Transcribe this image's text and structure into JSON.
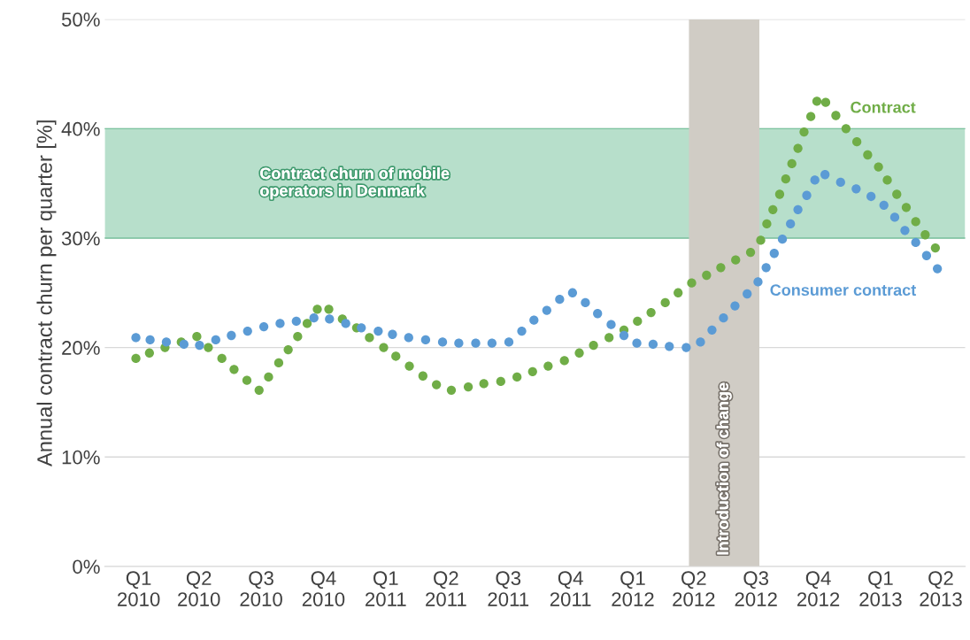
{
  "chart_data": {
    "type": "scatter",
    "ylabel": "Annual contract churn per quarter [%]",
    "xlim": [
      "2009-12-28",
      "2013-06-21"
    ],
    "xticks": [
      {
        "value": "2010-02-16",
        "label": "Q1\n2010"
      },
      {
        "value": "2010-05-16",
        "label": "Q2\n2010"
      },
      {
        "value": "2010-08-16",
        "label": "Q3\n2010"
      },
      {
        "value": "2010-11-16",
        "label": "Q4\n2010"
      },
      {
        "value": "2011-02-16",
        "label": "Q1\n2011"
      },
      {
        "value": "2011-05-16",
        "label": "Q2\n2011"
      },
      {
        "value": "2011-08-16",
        "label": "Q3\n2011"
      },
      {
        "value": "2011-11-16",
        "label": "Q4\n2011"
      },
      {
        "value": "2012-02-16",
        "label": "Q1\n2012"
      },
      {
        "value": "2012-05-16",
        "label": "Q2\n2012"
      },
      {
        "value": "2012-08-16",
        "label": "Q3\n2012"
      },
      {
        "value": "2012-11-16",
        "label": "Q4\n2012"
      },
      {
        "value": "2013-02-16",
        "label": "Q1\n2013"
      },
      {
        "value": "2013-05-16",
        "label": "Q2\n2013"
      }
    ],
    "ylim": [
      0,
      50
    ],
    "yticks": [
      {
        "value": 0,
        "label": "0%"
      },
      {
        "value": 10,
        "label": "10%"
      },
      {
        "value": 20,
        "label": "20%"
      },
      {
        "value": 30,
        "label": "30%"
      },
      {
        "value": 40,
        "label": "40%"
      },
      {
        "value": 50,
        "label": "50%"
      }
    ],
    "grid": "y",
    "legend": false,
    "marker": "circle",
    "bands": [
      {
        "axis": "y",
        "from": 30,
        "to": 40,
        "label": "Contract churn of mobile\noperators in Denmark",
        "color": "#7cc4a0"
      },
      {
        "axis": "x",
        "from": "2012-05-09",
        "to": "2012-08-21",
        "label": "Introduction of change",
        "color": "#d0ccc5"
      }
    ],
    "series": [
      {
        "name": "Contract",
        "color": "#70ad47",
        "x": [
          "2010-02-12",
          "2010-03-04",
          "2010-03-27",
          "2010-04-20",
          "2010-05-13",
          "2010-05-30",
          "2010-06-19",
          "2010-07-07",
          "2010-07-26",
          "2010-08-13",
          "2010-08-27",
          "2010-09-11",
          "2010-09-25",
          "2010-10-09",
          "2010-10-23",
          "2010-11-07",
          "2010-11-24",
          "2010-12-14",
          "2011-01-04",
          "2011-01-23",
          "2011-02-13",
          "2011-03-03",
          "2011-03-23",
          "2011-04-12",
          "2011-05-02",
          "2011-05-24",
          "2011-06-18",
          "2011-07-11",
          "2011-08-05",
          "2011-08-29",
          "2011-09-21",
          "2011-10-14",
          "2011-11-07",
          "2011-11-29",
          "2011-12-20",
          "2012-01-12",
          "2012-02-03",
          "2012-02-23",
          "2012-03-14",
          "2012-04-04",
          "2012-04-23",
          "2012-05-13",
          "2012-06-04",
          "2012-06-25",
          "2012-07-17",
          "2012-08-08",
          "2012-08-23",
          "2012-09-01",
          "2012-09-10",
          "2012-09-20",
          "2012-09-29",
          "2012-10-08",
          "2012-10-17",
          "2012-10-26",
          "2012-11-05",
          "2012-11-14",
          "2012-11-27",
          "2012-12-12",
          "2012-12-27",
          "2013-01-12",
          "2013-01-28",
          "2013-02-13",
          "2013-02-26",
          "2013-03-12",
          "2013-03-26",
          "2013-04-09",
          "2013-04-23",
          "2013-05-08"
        ],
        "values": [
          19.0,
          19.5,
          20.0,
          20.5,
          21.0,
          20.0,
          19.0,
          18.0,
          17.0,
          16.1,
          17.3,
          18.6,
          19.8,
          21.0,
          22.2,
          23.5,
          23.5,
          22.6,
          21.8,
          20.9,
          20.0,
          19.2,
          18.3,
          17.4,
          16.6,
          16.1,
          16.4,
          16.7,
          16.9,
          17.3,
          17.8,
          18.3,
          18.8,
          19.5,
          20.2,
          20.9,
          21.6,
          22.4,
          23.2,
          24.1,
          25.0,
          25.9,
          26.6,
          27.3,
          28.0,
          28.7,
          29.8,
          31.3,
          32.6,
          34.0,
          35.4,
          36.8,
          38.2,
          39.7,
          41.1,
          42.5,
          42.4,
          41.2,
          40.0,
          38.8,
          37.6,
          36.5,
          35.3,
          34.0,
          32.8,
          31.5,
          30.3,
          29.1
        ]
      },
      {
        "name": "Consumer contract",
        "color": "#5b9bd5",
        "x": [
          "2010-02-12",
          "2010-03-05",
          "2010-03-29",
          "2010-04-24",
          "2010-05-17",
          "2010-06-10",
          "2010-07-03",
          "2010-07-27",
          "2010-08-20",
          "2010-09-13",
          "2010-10-07",
          "2010-11-02",
          "2010-11-25",
          "2010-12-19",
          "2011-01-11",
          "2011-02-05",
          "2011-02-26",
          "2011-03-22",
          "2011-04-16",
          "2011-05-11",
          "2011-06-04",
          "2011-06-29",
          "2011-07-23",
          "2011-08-17",
          "2011-09-05",
          "2011-09-23",
          "2011-10-12",
          "2011-10-31",
          "2011-11-19",
          "2011-12-08",
          "2011-12-26",
          "2012-01-15",
          "2012-02-03",
          "2012-02-22",
          "2012-03-17",
          "2012-04-10",
          "2012-05-05",
          "2012-05-26",
          "2012-06-12",
          "2012-06-29",
          "2012-07-16",
          "2012-08-03",
          "2012-08-19",
          "2012-08-31",
          "2012-09-12",
          "2012-09-24",
          "2012-10-06",
          "2012-10-17",
          "2012-10-30",
          "2012-11-11",
          "2012-11-26",
          "2012-12-19",
          "2013-01-11",
          "2013-02-02",
          "2013-02-21",
          "2013-03-09",
          "2013-03-24",
          "2013-04-09",
          "2013-04-25",
          "2013-05-11"
        ],
        "values": [
          20.9,
          20.7,
          20.5,
          20.3,
          20.2,
          20.7,
          21.1,
          21.5,
          21.9,
          22.2,
          22.4,
          22.7,
          22.6,
          22.2,
          21.8,
          21.5,
          21.2,
          20.9,
          20.7,
          20.5,
          20.4,
          20.4,
          20.4,
          20.5,
          21.5,
          22.5,
          23.4,
          24.4,
          25.0,
          24.1,
          23.1,
          22.1,
          21.1,
          20.4,
          20.3,
          20.1,
          20.0,
          20.5,
          21.6,
          22.7,
          23.8,
          24.9,
          26.0,
          27.3,
          28.6,
          29.9,
          31.3,
          32.6,
          33.9,
          35.3,
          35.8,
          35.1,
          34.5,
          33.8,
          33.0,
          31.9,
          30.7,
          29.6,
          28.4,
          27.2
        ]
      }
    ]
  }
}
